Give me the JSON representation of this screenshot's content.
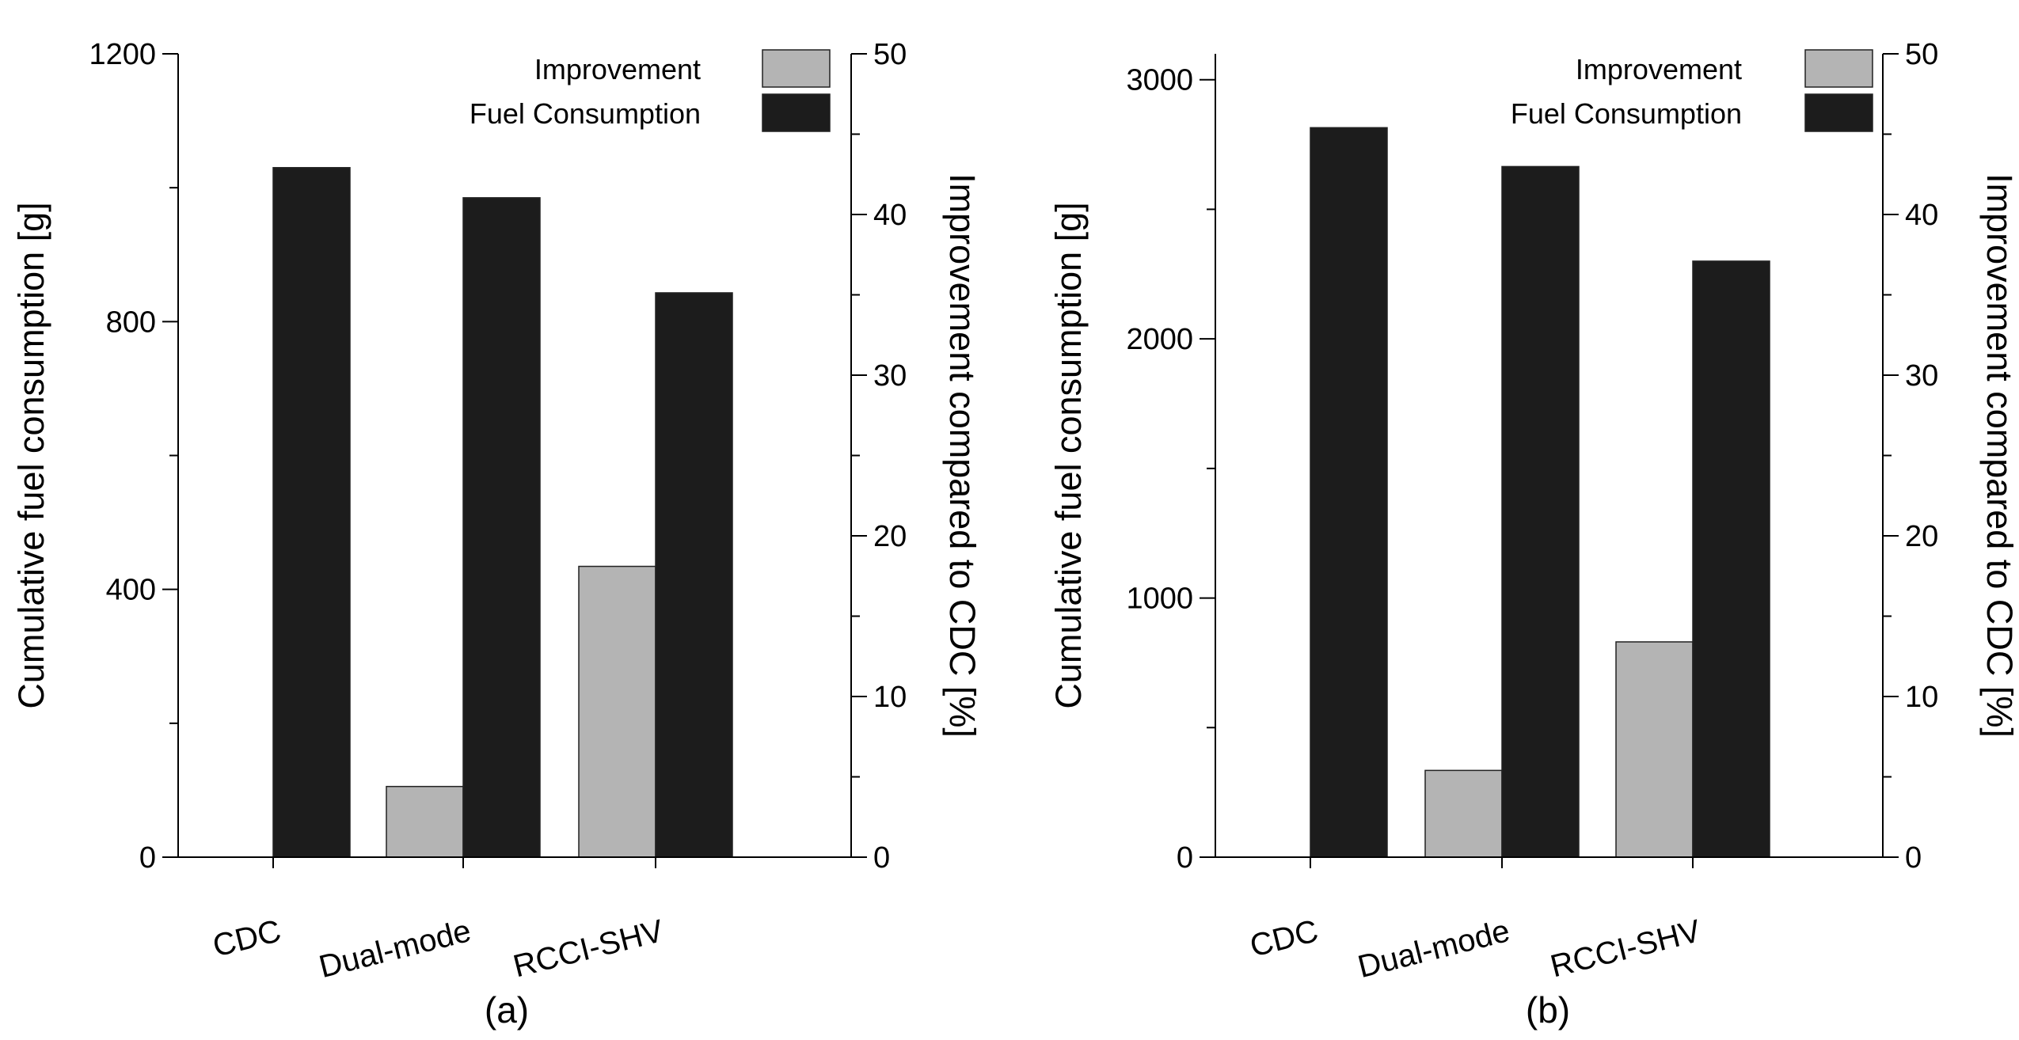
{
  "chart_data": [
    {
      "type": "bar",
      "panel_label": "(a)",
      "categories": [
        "CDC",
        "Dual-mode",
        "RCCI-SHV"
      ],
      "series": [
        {
          "name": "Improvement",
          "axis": "right",
          "color": "#b4b4b4",
          "values": [
            0,
            4.4,
            18.1
          ]
        },
        {
          "name": "Fuel Consumption",
          "axis": "left",
          "color": "#1c1c1c",
          "values": [
            1030,
            985,
            843
          ]
        }
      ],
      "ylabel": "Cumulative fuel consumption [g]",
      "ylim": [
        0,
        1200
      ],
      "yticks": [
        0,
        400,
        800,
        1200
      ],
      "ylabel_right": "Improvement compared to CDC [%]",
      "ylim_right": [
        0,
        50
      ],
      "yticks_right": [
        0,
        10,
        20,
        30,
        40,
        50
      ],
      "legend_position": "top-right",
      "grid": false
    },
    {
      "type": "bar",
      "panel_label": "(b)",
      "categories": [
        "CDC",
        "Dual-mode",
        "RCCI-SHV"
      ],
      "series": [
        {
          "name": "Improvement",
          "axis": "right",
          "color": "#b4b4b4",
          "values": [
            0,
            5.4,
            13.4
          ]
        },
        {
          "name": "Fuel Consumption",
          "axis": "left",
          "color": "#1c1c1c",
          "values": [
            2815,
            2665,
            2300
          ]
        }
      ],
      "ylabel": "Cumulative fuel consumption [g]",
      "ylim": [
        0,
        3100
      ],
      "yticks": [
        0,
        1000,
        2000,
        3000
      ],
      "ylabel_right": "Improvement compared to CDC [%]",
      "ylim_right": [
        0,
        50
      ],
      "yticks_right": [
        0,
        10,
        20,
        30,
        40,
        50
      ],
      "legend_position": "top-right",
      "grid": false
    }
  ]
}
